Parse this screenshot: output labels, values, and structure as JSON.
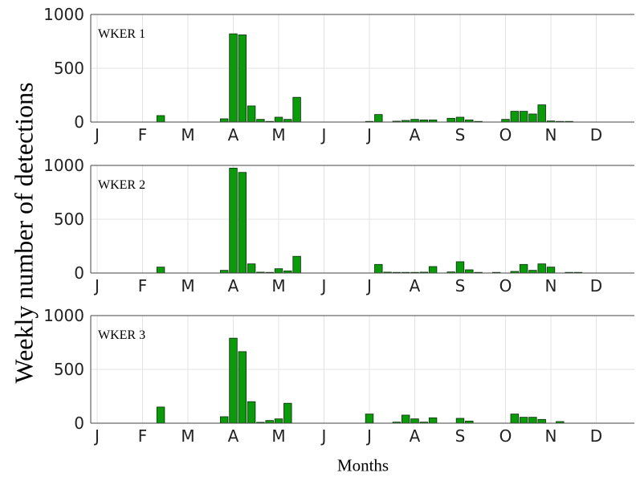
{
  "figure": {
    "ylabel": "Weekly number of detections",
    "xlabel": "Months"
  },
  "chart_data": [
    {
      "type": "bar",
      "panel": "WKER 1",
      "xlabel": "Months",
      "ylabel": "Weekly number of detections",
      "ylim": [
        0,
        1000
      ],
      "yticks": [
        0,
        500,
        1000
      ],
      "xlim": [
        0,
        53
      ],
      "month_ticks": [
        {
          "label": "J",
          "week": 0
        },
        {
          "label": "F",
          "week": 5
        },
        {
          "label": "M",
          "week": 10
        },
        {
          "label": "A",
          "week": 15
        },
        {
          "label": "M",
          "week": 20
        },
        {
          "label": "J",
          "week": 25
        },
        {
          "label": "J",
          "week": 30
        },
        {
          "label": "A",
          "week": 35
        },
        {
          "label": "S",
          "week": 40
        },
        {
          "label": "O",
          "week": 45
        },
        {
          "label": "N",
          "week": 50
        },
        {
          "label": "D",
          "week": 55
        }
      ],
      "grid": true,
      "color": "#0a9a0a",
      "bars": [
        {
          "week": 7,
          "value": 60
        },
        {
          "week": 14,
          "value": 30
        },
        {
          "week": 15,
          "value": 820
        },
        {
          "week": 16,
          "value": 810
        },
        {
          "week": 17,
          "value": 150
        },
        {
          "week": 18,
          "value": 25
        },
        {
          "week": 19,
          "value": 5
        },
        {
          "week": 20,
          "value": 45
        },
        {
          "week": 21,
          "value": 25
        },
        {
          "week": 22,
          "value": 230
        },
        {
          "week": 30,
          "value": 5
        },
        {
          "week": 31,
          "value": 70
        },
        {
          "week": 33,
          "value": 8
        },
        {
          "week": 34,
          "value": 15
        },
        {
          "week": 35,
          "value": 25
        },
        {
          "week": 36,
          "value": 20
        },
        {
          "week": 37,
          "value": 20
        },
        {
          "week": 39,
          "value": 35
        },
        {
          "week": 40,
          "value": 45
        },
        {
          "week": 41,
          "value": 20
        },
        {
          "week": 42,
          "value": 5
        },
        {
          "week": 45,
          "value": 25
        },
        {
          "week": 46,
          "value": 100
        },
        {
          "week": 47,
          "value": 100
        },
        {
          "week": 48,
          "value": 75
        },
        {
          "week": 49,
          "value": 160
        },
        {
          "week": 50,
          "value": 10
        },
        {
          "week": 51,
          "value": 5
        },
        {
          "week": 52,
          "value": 3
        }
      ]
    },
    {
      "type": "bar",
      "panel": "WKER 2",
      "xlabel": "Months",
      "ylabel": "Weekly number of detections",
      "ylim": [
        0,
        1000
      ],
      "yticks": [
        0,
        500,
        1000
      ],
      "xlim": [
        0,
        53
      ],
      "month_ticks": [
        {
          "label": "J",
          "week": 0
        },
        {
          "label": "F",
          "week": 5
        },
        {
          "label": "M",
          "week": 10
        },
        {
          "label": "A",
          "week": 15
        },
        {
          "label": "M",
          "week": 20
        },
        {
          "label": "J",
          "week": 25
        },
        {
          "label": "J",
          "week": 30
        },
        {
          "label": "A",
          "week": 35
        },
        {
          "label": "S",
          "week": 40
        },
        {
          "label": "O",
          "week": 45
        },
        {
          "label": "N",
          "week": 50
        },
        {
          "label": "D",
          "week": 55
        }
      ],
      "grid": true,
      "color": "#0a9a0a",
      "bars": [
        {
          "week": 7,
          "value": 55
        },
        {
          "week": 14,
          "value": 25
        },
        {
          "week": 15,
          "value": 975
        },
        {
          "week": 16,
          "value": 935
        },
        {
          "week": 17,
          "value": 85
        },
        {
          "week": 18,
          "value": 8
        },
        {
          "week": 19,
          "value": 5
        },
        {
          "week": 20,
          "value": 40
        },
        {
          "week": 21,
          "value": 20
        },
        {
          "week": 22,
          "value": 155
        },
        {
          "week": 31,
          "value": 80
        },
        {
          "week": 32,
          "value": 8
        },
        {
          "week": 33,
          "value": 5
        },
        {
          "week": 34,
          "value": 5
        },
        {
          "week": 35,
          "value": 5
        },
        {
          "week": 36,
          "value": 8
        },
        {
          "week": 37,
          "value": 60
        },
        {
          "week": 39,
          "value": 10
        },
        {
          "week": 40,
          "value": 105
        },
        {
          "week": 41,
          "value": 30
        },
        {
          "week": 42,
          "value": 5
        },
        {
          "week": 44,
          "value": 5
        },
        {
          "week": 46,
          "value": 15
        },
        {
          "week": 47,
          "value": 80
        },
        {
          "week": 48,
          "value": 25
        },
        {
          "week": 49,
          "value": 85
        },
        {
          "week": 50,
          "value": 55
        },
        {
          "week": 52,
          "value": 3
        },
        {
          "week": 53,
          "value": 3
        }
      ]
    },
    {
      "type": "bar",
      "panel": "WKER 3",
      "xlabel": "Months",
      "ylabel": "Weekly number of detections",
      "ylim": [
        0,
        1000
      ],
      "yticks": [
        0,
        500,
        1000
      ],
      "xlim": [
        0,
        53
      ],
      "month_ticks": [
        {
          "label": "J",
          "week": 0
        },
        {
          "label": "F",
          "week": 5
        },
        {
          "label": "M",
          "week": 10
        },
        {
          "label": "A",
          "week": 15
        },
        {
          "label": "M",
          "week": 20
        },
        {
          "label": "J",
          "week": 25
        },
        {
          "label": "J",
          "week": 30
        },
        {
          "label": "A",
          "week": 35
        },
        {
          "label": "S",
          "week": 40
        },
        {
          "label": "O",
          "week": 45
        },
        {
          "label": "N",
          "week": 50
        },
        {
          "label": "D",
          "week": 55
        }
      ],
      "grid": true,
      "color": "#0a9a0a",
      "bars": [
        {
          "week": 7,
          "value": 150
        },
        {
          "week": 14,
          "value": 60
        },
        {
          "week": 15,
          "value": 790
        },
        {
          "week": 16,
          "value": 665
        },
        {
          "week": 17,
          "value": 200
        },
        {
          "week": 18,
          "value": 8
        },
        {
          "week": 19,
          "value": 25
        },
        {
          "week": 20,
          "value": 40
        },
        {
          "week": 21,
          "value": 185
        },
        {
          "week": 30,
          "value": 85
        },
        {
          "week": 33,
          "value": 10
        },
        {
          "week": 34,
          "value": 75
        },
        {
          "week": 35,
          "value": 40
        },
        {
          "week": 36,
          "value": 10
        },
        {
          "week": 37,
          "value": 50
        },
        {
          "week": 40,
          "value": 45
        },
        {
          "week": 41,
          "value": 20
        },
        {
          "week": 46,
          "value": 85
        },
        {
          "week": 47,
          "value": 55
        },
        {
          "week": 48,
          "value": 55
        },
        {
          "week": 49,
          "value": 35
        },
        {
          "week": 51,
          "value": 15
        }
      ]
    }
  ]
}
